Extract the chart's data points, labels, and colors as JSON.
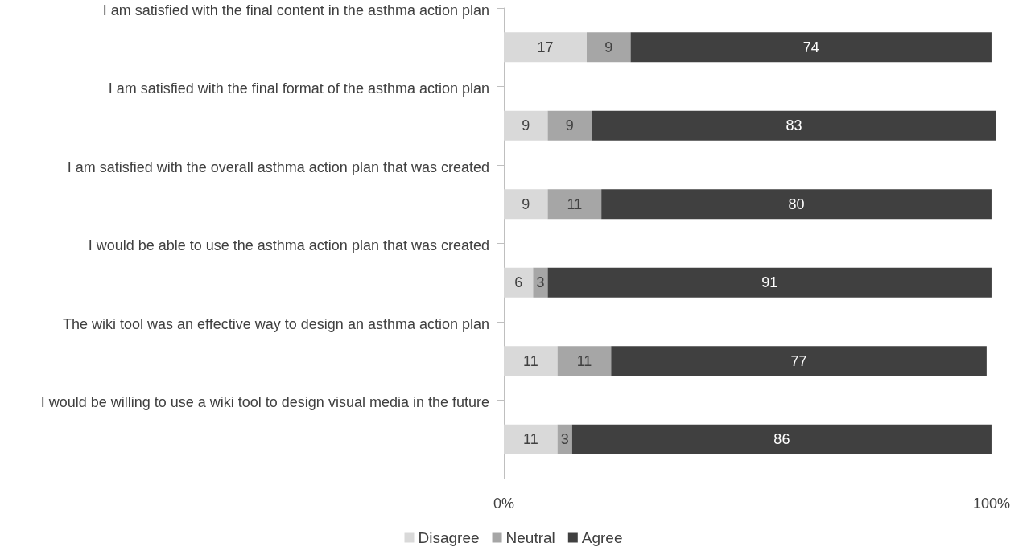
{
  "chart_data": {
    "type": "bar",
    "orientation": "horizontal",
    "stacked": true,
    "categories": [
      "I am satisfied with the final content in the asthma action plan",
      "I am satisfied with the final format of the asthma action plan",
      "I am satisfied with the overall asthma action plan that was created",
      "I would be able to use the asthma action plan that was created",
      "The wiki tool was an effective way to design an asthma action plan",
      "I would be willing to use a wiki tool to design visual media in the future"
    ],
    "series": [
      {
        "name": "Disagree",
        "color": "#d9d9d9",
        "values": [
          17,
          9,
          9,
          6,
          11,
          11
        ]
      },
      {
        "name": "Neutral",
        "color": "#a6a6a6",
        "values": [
          9,
          9,
          11,
          3,
          11,
          3
        ]
      },
      {
        "name": "Agree",
        "color": "#404040",
        "values": [
          74,
          83,
          80,
          91,
          77,
          86
        ]
      }
    ],
    "xlim": [
      0,
      101
    ],
    "xticks": [
      {
        "value": 0,
        "label": "0%"
      },
      {
        "value": 100,
        "label": "100%"
      }
    ],
    "data_labels": true,
    "legend": "bottom",
    "grid": false
  }
}
